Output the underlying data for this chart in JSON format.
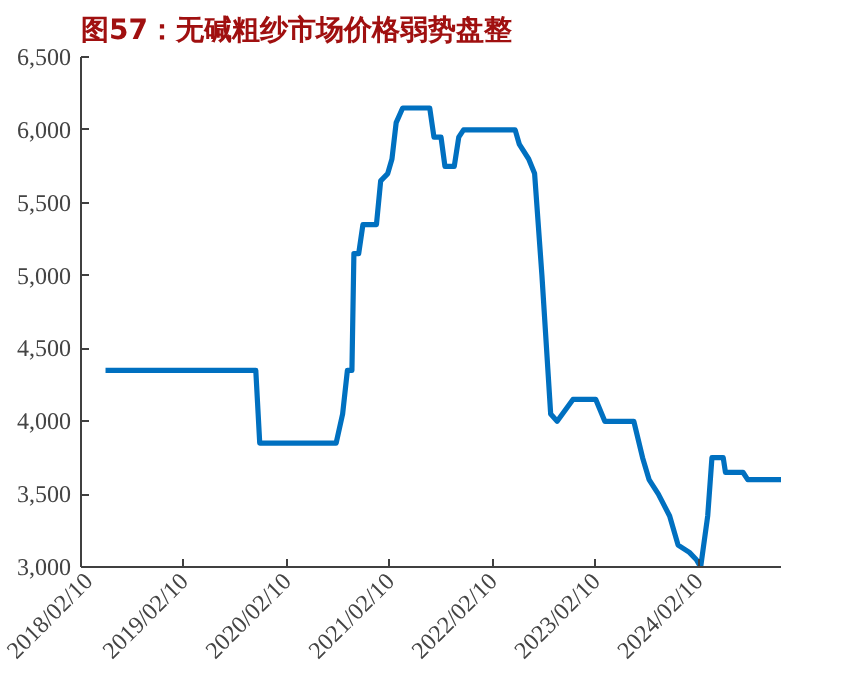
{
  "chart_data": {
    "type": "line",
    "title": "图57：无碱粗纱市场价格弱势盘整",
    "x": [
      "2018-05-08",
      "2019-10-23",
      "2019-11-06",
      "2020-08-03",
      "2020-08-26",
      "2020-09-12",
      "2020-09-28",
      "2020-10-05",
      "2020-10-22",
      "2020-11-06",
      "2020-12-24",
      "2021-01-08",
      "2021-02-02",
      "2021-02-17",
      "2021-03-04",
      "2021-03-27",
      "2021-07-01",
      "2021-07-16",
      "2021-08-10",
      "2021-08-24",
      "2021-09-26",
      "2021-10-12",
      "2021-10-29",
      "2022-04-30",
      "2022-05-15",
      "2022-06-17",
      "2022-07-08",
      "2022-08-03",
      "2022-09-03",
      "2022-09-26",
      "2022-11-21",
      "2023-02-10",
      "2023-03-14",
      "2023-06-25",
      "2023-07-26",
      "2023-08-18",
      "2023-09-20",
      "2023-10-30",
      "2023-11-29",
      "2024-01-08",
      "2024-02-02",
      "2024-02-17",
      "2024-03-13",
      "2024-03-28",
      "2024-05-07",
      "2024-05-15",
      "2024-07-16",
      "2024-08-02",
      "2024-11-28"
    ],
    "series": [
      {
        "color": "#0070c0",
        "values": [
          4350,
          4350,
          3850,
          3850,
          4050,
          4350,
          4350,
          5150,
          5150,
          5350,
          5350,
          5650,
          5700,
          5800,
          6050,
          6150,
          6150,
          5950,
          5950,
          5750,
          5750,
          5950,
          6000,
          6000,
          5900,
          5800,
          5700,
          5000,
          4050,
          4000,
          4150,
          4150,
          4000,
          4000,
          3750,
          3600,
          3500,
          3350,
          3150,
          3100,
          3050,
          3000,
          3350,
          3750,
          3750,
          3650,
          3650,
          3600,
          3600
        ]
      }
    ],
    "xlim": [
      "2018-02-10",
      "2024-11-28"
    ],
    "xticks": [
      {
        "value": "2018-02-10",
        "label": "2018/02/10"
      },
      {
        "value": "2019-02-10",
        "label": "2019/02/10"
      },
      {
        "value": "2020-02-10",
        "label": "2020/02/10"
      },
      {
        "value": "2021-02-10",
        "label": "2021/02/10"
      },
      {
        "value": "2022-02-10",
        "label": "2022/02/10"
      },
      {
        "value": "2023-02-10",
        "label": "2023/02/10"
      },
      {
        "value": "2024-02-10",
        "label": "2024/02/10"
      }
    ],
    "ylim": [
      3000,
      6500
    ],
    "yticks": [
      {
        "value": 3000,
        "label": "3,000"
      },
      {
        "value": 3500,
        "label": "3,500"
      },
      {
        "value": 4000,
        "label": "4,000"
      },
      {
        "value": 4500,
        "label": "4,500"
      },
      {
        "value": 5000,
        "label": "5,000"
      },
      {
        "value": 5500,
        "label": "5,500"
      },
      {
        "value": 6000,
        "label": "6,000"
      },
      {
        "value": 6500,
        "label": "6,500"
      }
    ],
    "grid": false,
    "line_style": "solid"
  }
}
